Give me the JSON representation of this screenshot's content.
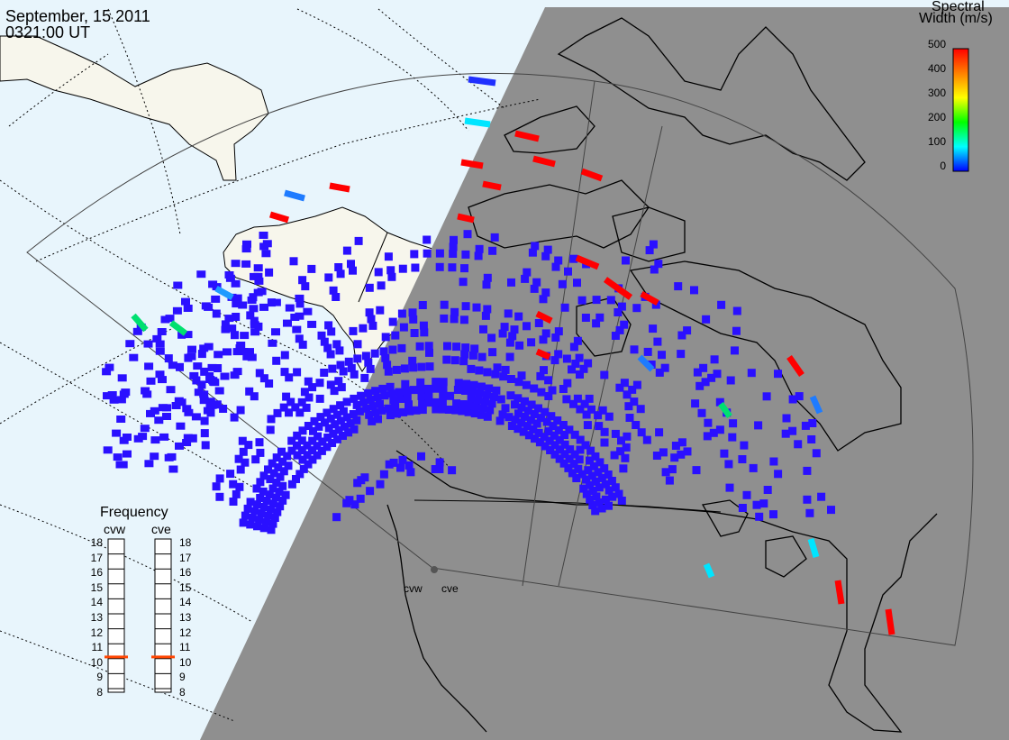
{
  "header": {
    "date": "September, 15 2011",
    "time": "0321:00 UT"
  },
  "colorbar": {
    "title_line1": "Spectral",
    "title_line2": "Width (m/s)",
    "ticks": [
      "500",
      "400",
      "300",
      "200",
      "100",
      "0"
    ],
    "min": 0,
    "max": 500,
    "colors": [
      "#ff0000",
      "#ff8000",
      "#ffff00",
      "#00ff00",
      "#00ffff",
      "#0000ff"
    ]
  },
  "frequency": {
    "title": "Frequency",
    "radars": [
      {
        "name": "cvw",
        "value": 10.6
      },
      {
        "name": "cve",
        "value": 10.6
      }
    ],
    "scale": [
      "18",
      "17",
      "16",
      "15",
      "14",
      "13",
      "12",
      "11",
      "10",
      "9",
      "8"
    ]
  },
  "radar_sites": [
    {
      "name": "cvw"
    },
    {
      "name": "cve"
    }
  ],
  "colors": {
    "ocean": "#e8f5fc",
    "land": "#f7f6ec",
    "night": "#8f8f8f",
    "low_width": "#2a10ff",
    "high_width": "#ff0000",
    "frequency_marker": "#ff4400"
  }
}
